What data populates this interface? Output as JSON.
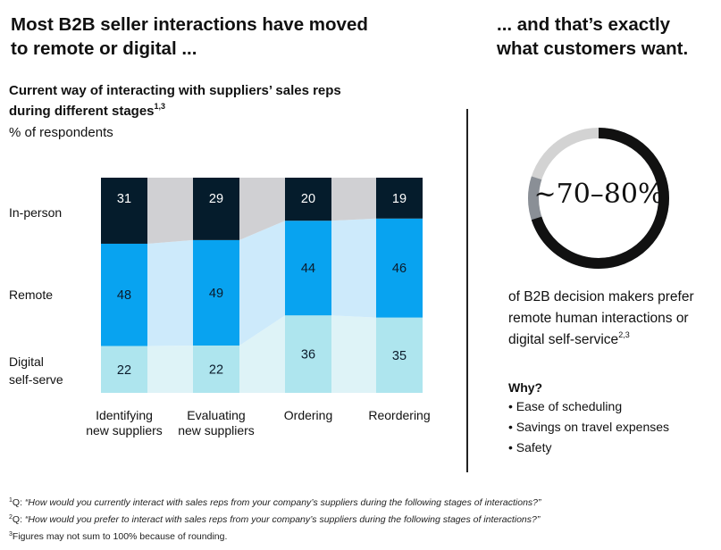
{
  "headline_left": "Most B2B seller interactions have moved to remote or digital ...",
  "headline_left_line1": "Most B2B seller interactions have moved",
  "headline_left_line2": "to remote or digital ...",
  "headline_right_line1": "... and that’s exactly",
  "headline_right_line2": "what customers want.",
  "chart_title_line1": "Current way of interacting with suppliers’ sales reps",
  "chart_title_line2": "during different stages",
  "chart_title_sup": "1,3",
  "chart_unit": "% of respondents",
  "row_labels": {
    "in_person": "In-person",
    "remote": "Remote",
    "digital_line1": "Digital",
    "digital_line2": "self-serve"
  },
  "chart_data": {
    "type": "bar",
    "stacked": true,
    "categories": [
      "Identifying new suppliers",
      "Evaluating new suppliers",
      "Ordering",
      "Reordering"
    ],
    "category_lines": [
      [
        "Identifying",
        "new suppliers"
      ],
      [
        "Evaluating",
        "new suppliers"
      ],
      [
        "Ordering"
      ],
      [
        "Reordering"
      ]
    ],
    "series": [
      {
        "name": "Digital self-serve",
        "values": [
          22,
          22,
          36,
          35
        ],
        "color": "#aee5ee",
        "band_color": "#def3f7"
      },
      {
        "name": "Remote",
        "values": [
          48,
          49,
          44,
          46
        ],
        "color": "#08a3f0",
        "band_color": "#cdeafb"
      },
      {
        "name": "In-person",
        "values": [
          31,
          29,
          20,
          19
        ],
        "color": "#051c2c",
        "band_color": "#d0d0d3"
      }
    ],
    "title": "Current way of interacting with suppliers’ sales reps during different stages",
    "ylabel": "% of respondents",
    "legend": "left-row-labels",
    "grid": false
  },
  "stat": {
    "value": "~70–80%",
    "fill_fraction_range": [
      0.7,
      0.8
    ],
    "ring_colors": {
      "main": "#111111",
      "mid": "#8a8f96",
      "rest": "#d3d3d3"
    },
    "desc_line1": "of B2B decision makers prefer",
    "desc_line2": "remote human interactions or",
    "desc_line3": "digital self-service",
    "desc_sup": "2,3"
  },
  "why": {
    "title": "Why?",
    "items": [
      "Ease of scheduling",
      "Savings on travel expenses",
      "Safety"
    ]
  },
  "footnotes": [
    {
      "num": "1",
      "prefix": "Q: ",
      "text": "“How would you currently interact with sales reps from your company’s suppliers during the following stages of interactions?”"
    },
    {
      "num": "2",
      "prefix": "Q: ",
      "text": "“How would you prefer to interact with sales reps from your company’s suppliers during the following stages of interactions?”"
    },
    {
      "num": "3",
      "prefix": "",
      "text": "Figures may not sum to 100% because of rounding."
    }
  ]
}
